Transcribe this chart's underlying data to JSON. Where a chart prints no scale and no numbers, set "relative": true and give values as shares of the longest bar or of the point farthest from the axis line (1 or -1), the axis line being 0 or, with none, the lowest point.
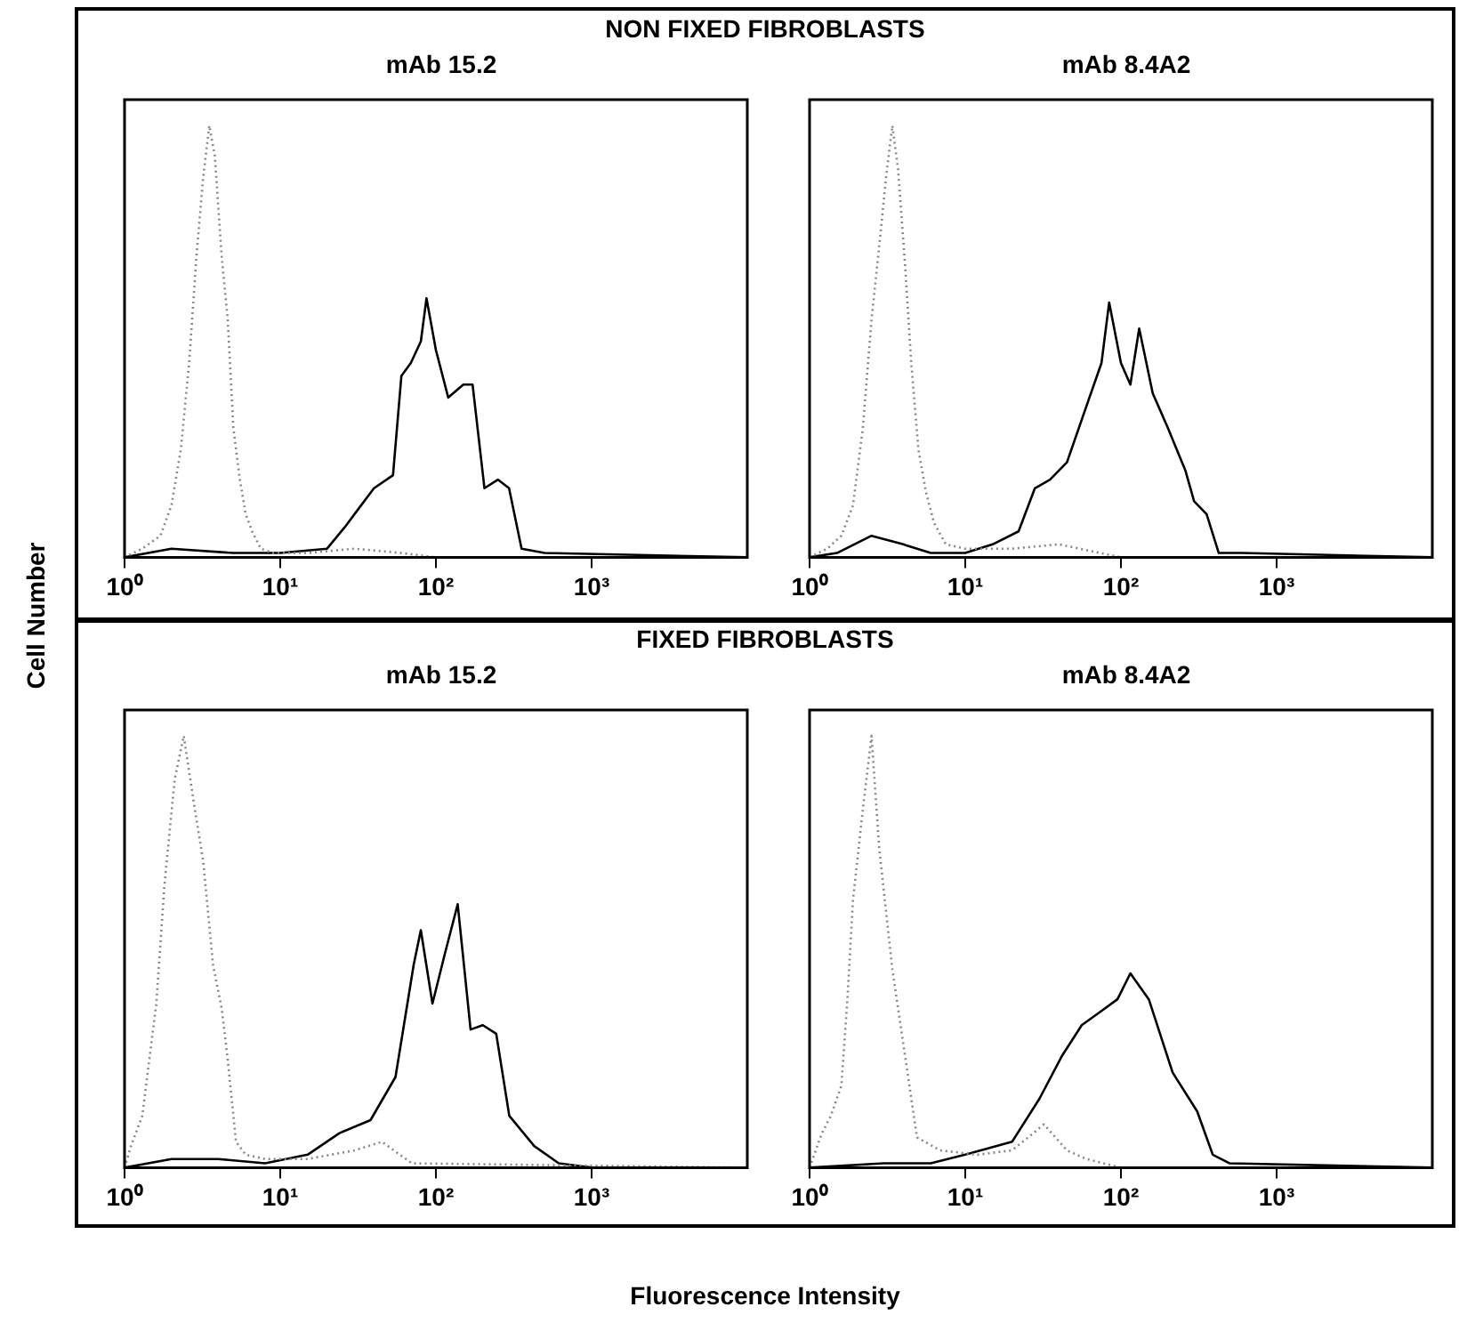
{
  "chart_data": [
    {
      "type": "line",
      "title": "mAb 15.2",
      "ylabel": "Cell Number",
      "annotations": [
        "NON FIXED FIBROBLASTS"
      ],
      "relative": true,
      "log": "x",
      "xlim": [
        1,
        10000
      ],
      "xticks": [
        {
          "value": 1,
          "label": "10⁰"
        },
        {
          "value": 10,
          "label": "10¹"
        },
        {
          "value": 100,
          "label": "10²"
        },
        {
          "value": 1000,
          "label": "10³"
        }
      ],
      "series": [
        {
          "color": "#888888",
          "line_style": "dotted",
          "x": [
            1,
            1.3,
            1.7,
            2,
            2.3,
            2.6,
            2.9,
            3.2,
            3.5,
            3.8,
            4.2,
            4.6,
            5,
            5.5,
            6,
            6.6,
            7.5,
            9,
            15,
            30,
            60,
            100,
            10000
          ],
          "values": [
            0,
            0.02,
            0.05,
            0.12,
            0.25,
            0.45,
            0.7,
            0.88,
            1,
            0.93,
            0.7,
            0.55,
            0.3,
            0.18,
            0.1,
            0.06,
            0.02,
            0.01,
            0.01,
            0.02,
            0.01,
            0,
            0
          ]
        },
        {
          "color": "#000000",
          "line_style": "solid",
          "x": [
            1,
            2,
            5,
            10,
            20,
            26,
            30,
            40,
            53,
            60,
            69,
            80,
            87,
            100,
            120,
            150,
            172,
            205,
            250,
            295,
            355,
            500,
            10000
          ],
          "values": [
            0,
            0.02,
            0.01,
            0.01,
            0.02,
            0.07,
            0.1,
            0.16,
            0.19,
            0.42,
            0.45,
            0.5,
            0.6,
            0.48,
            0.37,
            0.4,
            0.4,
            0.16,
            0.18,
            0.16,
            0.02,
            0.01,
            0
          ]
        }
      ]
    },
    {
      "type": "line",
      "title": "mAb 8.4A2",
      "relative": true,
      "log": "x",
      "xlim": [
        1,
        10000
      ],
      "xticks": [
        {
          "value": 1,
          "label": "10⁰"
        },
        {
          "value": 10,
          "label": "10¹"
        },
        {
          "value": 100,
          "label": "10²"
        },
        {
          "value": 1000,
          "label": "10³"
        }
      ],
      "series": [
        {
          "color": "#888888",
          "line_style": "dotted",
          "x": [
            1,
            1.3,
            1.6,
            1.9,
            2.2,
            2.5,
            2.8,
            3.1,
            3.4,
            3.7,
            4.1,
            4.5,
            5,
            5.6,
            6.3,
            7.5,
            10,
            20,
            40,
            100,
            10000
          ],
          "values": [
            0,
            0.02,
            0.05,
            0.12,
            0.3,
            0.55,
            0.72,
            0.88,
            1,
            0.9,
            0.68,
            0.45,
            0.25,
            0.15,
            0.08,
            0.03,
            0.02,
            0.02,
            0.03,
            0,
            0
          ]
        },
        {
          "color": "#000000",
          "line_style": "solid",
          "x": [
            1,
            1.5,
            2.5,
            4,
            6,
            10,
            15,
            22,
            28,
            35,
            45,
            60,
            75,
            84,
            100,
            115,
            131,
            160,
            200,
            260,
            295,
            355,
            425,
            600,
            10000
          ],
          "values": [
            0,
            0.01,
            0.05,
            0.03,
            0.01,
            0.01,
            0.03,
            0.06,
            0.16,
            0.18,
            0.22,
            0.35,
            0.45,
            0.59,
            0.45,
            0.4,
            0.53,
            0.38,
            0.3,
            0.2,
            0.13,
            0.1,
            0.01,
            0.01,
            0
          ]
        }
      ]
    },
    {
      "type": "line",
      "title": "mAb 15.2",
      "xlabel": "Fluorescence Intensity",
      "annotations": [
        "FIXED FIBROBLASTS"
      ],
      "relative": true,
      "log": "x",
      "xlim": [
        1,
        10000
      ],
      "xticks": [
        {
          "value": 1,
          "label": "10⁰"
        },
        {
          "value": 10,
          "label": "10¹"
        },
        {
          "value": 100,
          "label": "10²"
        },
        {
          "value": 1000,
          "label": "10³"
        }
      ],
      "series": [
        {
          "color": "#888888",
          "line_style": "dotted",
          "x": [
            1,
            1.1,
            1.3,
            1.6,
            1.8,
            2.1,
            2.4,
            2.8,
            3.2,
            3.7,
            4.2,
            4.6,
            5.2,
            6,
            8,
            15,
            30,
            45,
            70,
            10000
          ],
          "values": [
            0,
            0.05,
            0.12,
            0.38,
            0.65,
            0.9,
            1,
            0.84,
            0.71,
            0.47,
            0.37,
            0.25,
            0.06,
            0.03,
            0.02,
            0.02,
            0.04,
            0.06,
            0.01,
            0
          ]
        },
        {
          "color": "#000000",
          "line_style": "solid",
          "x": [
            1,
            2,
            4,
            8,
            15,
            24,
            38,
            55,
            72,
            80,
            95,
            115,
            138,
            167,
            200,
            244,
            296,
            428,
            615,
            1000,
            10000
          ],
          "values": [
            0,
            0.02,
            0.02,
            0.01,
            0.03,
            0.08,
            0.11,
            0.21,
            0.47,
            0.55,
            0.38,
            0.5,
            0.61,
            0.32,
            0.33,
            0.31,
            0.12,
            0.05,
            0.01,
            0,
            0
          ]
        }
      ]
    },
    {
      "type": "line",
      "title": "mAb 8.4A2",
      "relative": true,
      "log": "x",
      "xlim": [
        1,
        10000
      ],
      "xticks": [
        {
          "value": 1,
          "label": "10⁰"
        },
        {
          "value": 10,
          "label": "10¹"
        },
        {
          "value": 100,
          "label": "10²"
        },
        {
          "value": 1000,
          "label": "10³"
        }
      ],
      "series": [
        {
          "color": "#888888",
          "line_style": "dotted",
          "x": [
            1,
            1.2,
            1.37,
            1.6,
            1.75,
            1.9,
            2.2,
            2.5,
            2.8,
            3.4,
            4.1,
            4.9,
            6.9,
            12,
            20,
            32,
            45,
            60,
            100,
            10000
          ],
          "values": [
            0,
            0.08,
            0.12,
            0.19,
            0.39,
            0.62,
            0.83,
            1,
            0.74,
            0.46,
            0.26,
            0.07,
            0.04,
            0.03,
            0.04,
            0.1,
            0.04,
            0.02,
            0,
            0
          ]
        },
        {
          "color": "#000000",
          "line_style": "solid",
          "x": [
            1,
            3,
            6,
            10,
            20,
            30,
            42,
            56,
            73,
            95,
            115,
            151,
            215,
            309,
            389,
            500,
            10000
          ],
          "values": [
            0,
            0.01,
            0.01,
            0.03,
            0.06,
            0.16,
            0.26,
            0.33,
            0.36,
            0.39,
            0.45,
            0.39,
            0.22,
            0.13,
            0.03,
            0.01,
            0
          ]
        }
      ]
    }
  ]
}
